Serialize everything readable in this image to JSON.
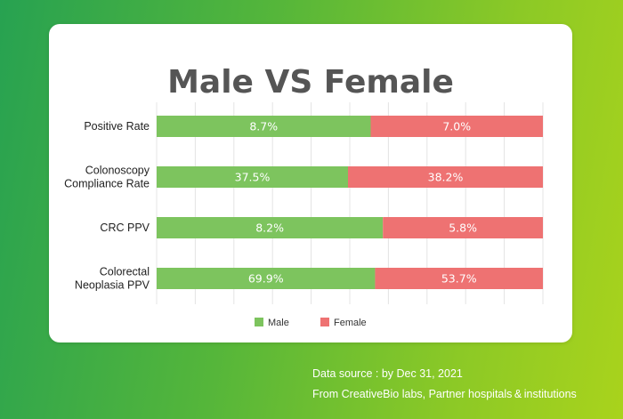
{
  "footer": {
    "source_line": "Data source : by Dec 31, 2021",
    "from_line": "From  CreativeBio labs, Partner hospitals & institutions"
  },
  "chart_data": {
    "type": "bar",
    "orientation": "horizontal",
    "stacked": "percent",
    "title": "Male VS Female",
    "categories": [
      [
        "Positive Rate"
      ],
      [
        "Colonoscopy",
        "Compliance Rate"
      ],
      [
        "CRC PPV"
      ],
      [
        "Colorectal",
        "Neoplasia PPV"
      ]
    ],
    "series": [
      {
        "name": "Male",
        "color": "#7dc45e",
        "values": [
          8.7,
          37.5,
          8.2,
          69.9
        ],
        "labels": [
          "8.7%",
          "37.5%",
          "8.2%",
          "69.9%"
        ]
      },
      {
        "name": "Female",
        "color": "#ee7272",
        "values": [
          7.0,
          38.2,
          5.8,
          53.7
        ],
        "labels": [
          "7.0%",
          "38.2%",
          "5.8%",
          "53.7%"
        ]
      }
    ],
    "grid": true,
    "legend": "bottom"
  }
}
